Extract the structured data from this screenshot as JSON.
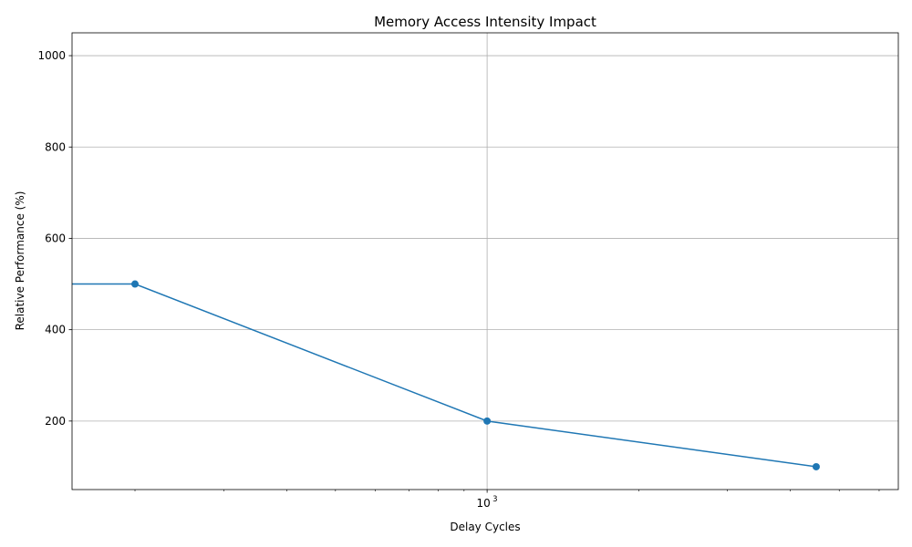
{
  "chart_data": {
    "type": "line",
    "title": "Memory Access Intensity Impact",
    "xlabel": "Delay Cycles",
    "ylabel": "Relative Performance (%)",
    "x_scale": "log",
    "x_tick_labels": [
      {
        "value": 1000,
        "label": "10",
        "exponent": "3"
      }
    ],
    "y_ticks": [
      200,
      400,
      600,
      800,
      1000
    ],
    "ylim": [
      50,
      1050
    ],
    "xlim": [
      150,
      6550
    ],
    "grid": true,
    "colors": {
      "line": "#1f77b4",
      "grid": "#b0b0b0",
      "axes": "#000000"
    },
    "series": [
      {
        "x": [
          100,
          200,
          1000,
          4500
        ],
        "y": [
          500,
          500,
          200,
          100
        ],
        "markers": [
          false,
          true,
          true,
          true
        ]
      }
    ]
  }
}
